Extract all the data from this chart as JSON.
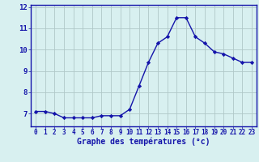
{
  "x": [
    0,
    1,
    2,
    3,
    4,
    5,
    6,
    7,
    8,
    9,
    10,
    11,
    12,
    13,
    14,
    15,
    16,
    17,
    18,
    19,
    20,
    21,
    22,
    23
  ],
  "y": [
    7.1,
    7.1,
    7.0,
    6.8,
    6.8,
    6.8,
    6.8,
    6.9,
    6.9,
    6.9,
    7.2,
    8.3,
    9.4,
    10.3,
    10.6,
    11.5,
    11.5,
    10.6,
    10.3,
    9.9,
    9.8,
    9.6,
    9.4,
    9.4
  ],
  "line_color": "#1414aa",
  "marker": "D",
  "marker_size": 2.2,
  "background_color": "#d8f0f0",
  "grid_color": "#b0c8c8",
  "xlabel": "Graphe des températures (°c)",
  "xlabel_color": "#1414aa",
  "ylabel_ticks": [
    7,
    8,
    9,
    10,
    11,
    12
  ],
  "xlim": [
    -0.5,
    23.5
  ],
  "ylim": [
    6.4,
    12.1
  ],
  "tick_color": "#1414aa",
  "axis_color": "#1414aa",
  "tick_fontsize": 5.5,
  "ylabel_fontsize": 6.5,
  "xlabel_fontsize": 7.0
}
